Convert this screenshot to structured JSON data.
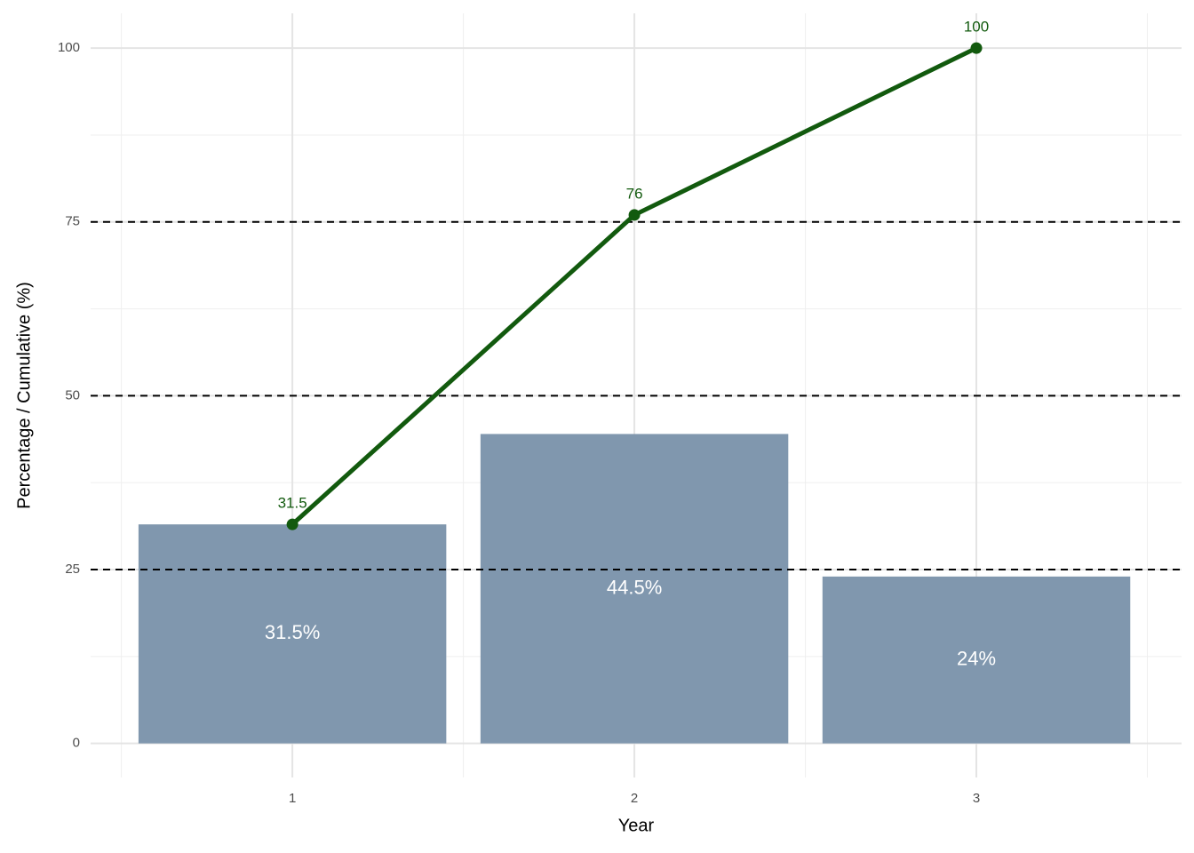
{
  "chart_data": {
    "type": "bar",
    "x_label": "Year",
    "y_label": "Percentage / Cumulative (%)",
    "x": [
      1,
      2,
      3
    ],
    "series": [
      {
        "type": "bar",
        "color": "#8097ae",
        "values": [
          31.5,
          44.5,
          24
        ],
        "value_labels": [
          "31.5%",
          "44.5%",
          "24%"
        ]
      },
      {
        "type": "line",
        "color": "#125a0e",
        "values": [
          31.5,
          76,
          100
        ]
      }
    ],
    "xlim": [
      0.41,
      3.6
    ],
    "xticks": [
      1,
      2,
      3
    ],
    "x_minor_ticks": [
      0.5,
      1.5,
      2.5,
      3.5
    ],
    "ylim": [
      -4.9,
      105
    ],
    "yticks": [
      0,
      25,
      50,
      75,
      100
    ],
    "y_minor_ticks": [
      12.5,
      37.5,
      62.5,
      87.5
    ],
    "hlines": [
      25,
      50,
      75
    ],
    "grid": true
  }
}
